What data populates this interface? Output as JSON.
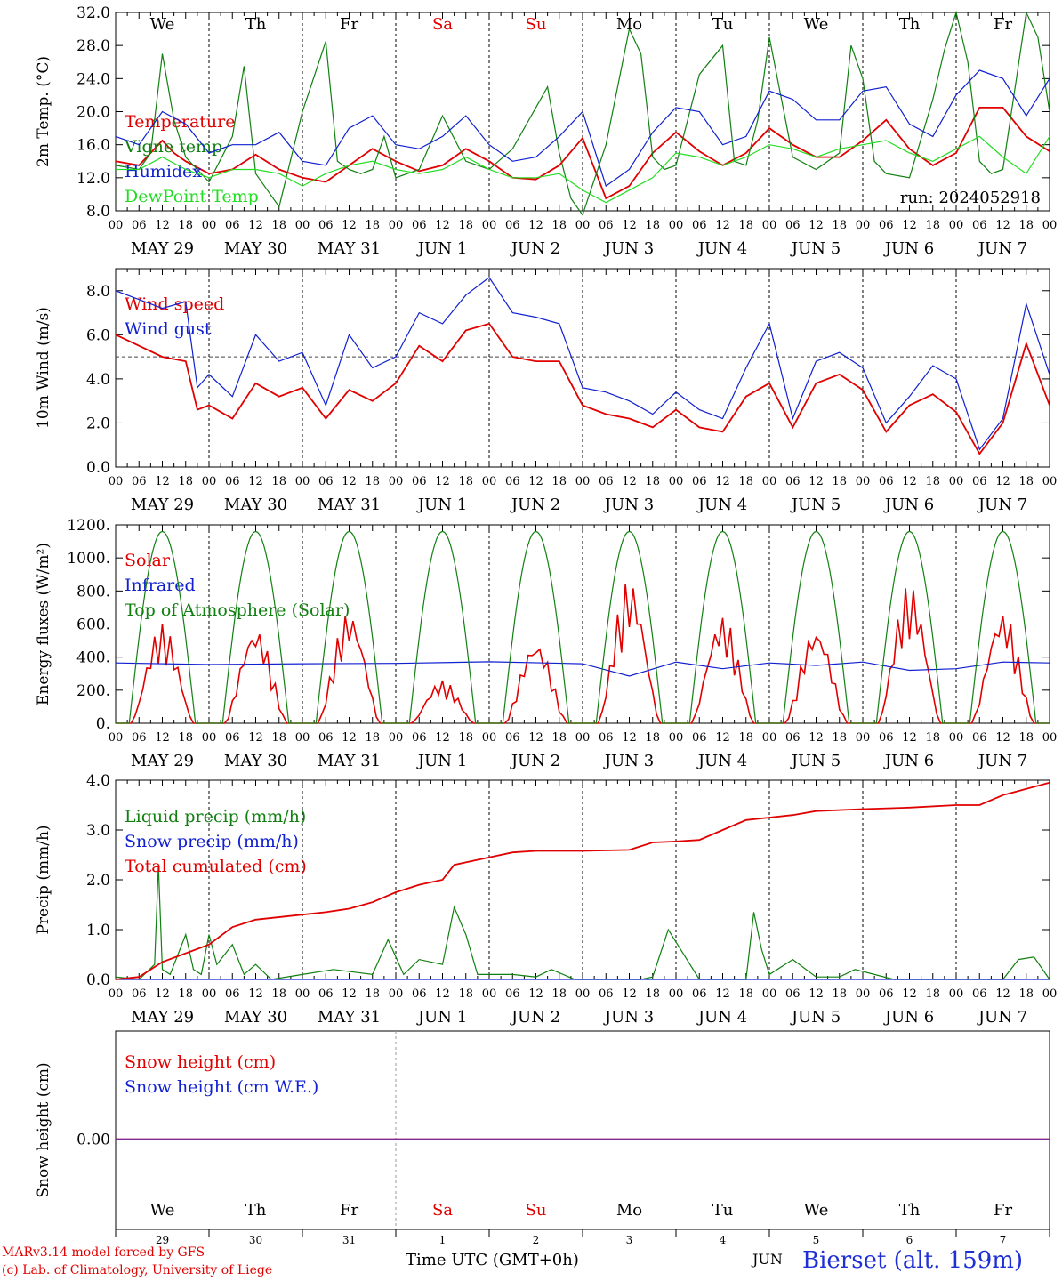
{
  "colors": {
    "red": "#e00000",
    "green": "#118011",
    "blue": "#1020d0",
    "lime": "#22dd22",
    "purple": "#7a2a9a",
    "axis": "#000000"
  },
  "days": [
    "We",
    "Th",
    "Fr",
    "Sa",
    "Su",
    "Mo",
    "Tu",
    "We",
    "Th",
    "Fr"
  ],
  "weekend_days": [
    3,
    4
  ],
  "date_labels": [
    "MAY 29",
    "MAY 30",
    "MAY 31",
    "JUN  1",
    "JUN  2",
    "JUN  3",
    "JUN  4",
    "JUN  5",
    "JUN  6",
    "JUN  7"
  ],
  "day_numbers": [
    "29",
    "30",
    "31",
    "1",
    "2",
    "3",
    "4",
    "5",
    "6",
    "7"
  ],
  "hour_labels": [
    "00",
    "06",
    "12",
    "18"
  ],
  "chart_data": [
    {
      "type": "line",
      "ylabel": "2m Temp. (°C)",
      "ylim": [
        8,
        32
      ],
      "yticks": [
        "8.0",
        "12.0",
        "16.0",
        "20.0",
        "24.0",
        "28.0",
        "32.0"
      ],
      "x_unit": "hours since MAY 29 00 UTC",
      "run": "run: 2024052918",
      "series": [
        {
          "name": "Temperature",
          "color": "red",
          "x": [
            0,
            6,
            12,
            15,
            18,
            24,
            30,
            36,
            42,
            48,
            54,
            60,
            66,
            72,
            78,
            84,
            90,
            96,
            102,
            108,
            114,
            120,
            126,
            132,
            138,
            144,
            150,
            156,
            162,
            168,
            174,
            180,
            186,
            192,
            198,
            204,
            210,
            216,
            222,
            228,
            234,
            240
          ],
          "y": [
            14,
            13.5,
            16.5,
            15,
            14,
            12.5,
            13,
            14.8,
            13,
            12,
            11.5,
            13.5,
            15.5,
            14,
            12.8,
            13.5,
            15.5,
            14,
            12,
            11.8,
            13.5,
            16.8,
            9.5,
            11,
            15,
            17.5,
            15.2,
            13.5,
            15,
            18,
            16,
            14.5,
            14.5,
            16.5,
            19,
            15.5,
            13.5,
            15,
            20.5,
            20.5,
            17,
            15.2
          ]
        },
        {
          "name": "Vigne temp",
          "color": "green",
          "x": [
            0,
            6,
            9,
            12,
            15,
            18,
            24,
            30,
            33,
            36,
            39,
            42,
            48,
            54,
            57,
            60,
            63,
            66,
            69,
            72,
            78,
            84,
            90,
            96,
            102,
            108,
            111,
            114,
            117,
            120,
            126,
            132,
            135,
            138,
            141,
            144,
            150,
            156,
            159,
            162,
            165,
            168,
            174,
            180,
            186,
            189,
            192,
            195,
            198,
            204,
            210,
            213,
            216,
            219,
            222,
            225,
            228,
            234,
            237,
            240
          ],
          "y": [
            13.5,
            13,
            15,
            27,
            19,
            14.5,
            11.5,
            17,
            25.5,
            12.5,
            10.5,
            8.5,
            20,
            28.5,
            14,
            13,
            12.5,
            13,
            17,
            12,
            13,
            19.5,
            14,
            13,
            15.5,
            20.5,
            23,
            15,
            9.5,
            7.5,
            16,
            30,
            27,
            14.5,
            13,
            13.5,
            24.5,
            28,
            14,
            13.5,
            19,
            29,
            14.5,
            13,
            15,
            28,
            24,
            14,
            12.5,
            12,
            21.5,
            27.5,
            32,
            26,
            14,
            12.5,
            13,
            32,
            29,
            20
          ]
        },
        {
          "name": "Humidex",
          "color": "blue",
          "x": [
            0,
            6,
            12,
            18,
            24,
            30,
            36,
            42,
            48,
            54,
            60,
            66,
            72,
            78,
            84,
            90,
            96,
            102,
            108,
            114,
            120,
            126,
            132,
            138,
            144,
            150,
            156,
            162,
            168,
            174,
            180,
            186,
            192,
            198,
            204,
            210,
            216,
            222,
            228,
            234,
            240
          ],
          "y": [
            17,
            16,
            20,
            18.5,
            15,
            16,
            16,
            17.5,
            14,
            13.5,
            18,
            19.5,
            16,
            15.5,
            17,
            19.5,
            16,
            14,
            14.5,
            17,
            20,
            11,
            13,
            17.5,
            20.5,
            20,
            16,
            17,
            22.5,
            21.5,
            19,
            19,
            22.5,
            23,
            18.5,
            17,
            22,
            25,
            24,
            19.5,
            24
          ]
        },
        {
          "name": "DewPoint Temp",
          "color": "lime",
          "x": [
            0,
            6,
            12,
            18,
            24,
            30,
            36,
            42,
            48,
            54,
            60,
            66,
            72,
            78,
            84,
            90,
            96,
            102,
            108,
            114,
            120,
            126,
            132,
            138,
            144,
            150,
            156,
            162,
            168,
            174,
            180,
            186,
            192,
            198,
            204,
            210,
            216,
            222,
            228,
            234,
            240
          ],
          "y": [
            13,
            13,
            14.5,
            13,
            12,
            13,
            13,
            12.5,
            11,
            12.5,
            13.5,
            14,
            13,
            12.5,
            13,
            14.5,
            13,
            12,
            12,
            12.5,
            10.5,
            9,
            10.5,
            12,
            15,
            14.5,
            13.5,
            14.5,
            16,
            15.5,
            14.5,
            15.5,
            16,
            16.5,
            15,
            14,
            15.5,
            17,
            14.5,
            12.5,
            17
          ]
        }
      ]
    },
    {
      "type": "line",
      "ylabel": "10m Wind (m/s)",
      "ylim": [
        0,
        9
      ],
      "yticks": [
        "0.0",
        "2.0",
        "4.0",
        "6.0",
        "8.0"
      ],
      "reference_line": 5,
      "series": [
        {
          "name": "Wind speed",
          "color": "red",
          "x": [
            0,
            6,
            12,
            18,
            21,
            24,
            30,
            36,
            42,
            48,
            54,
            60,
            66,
            72,
            78,
            84,
            90,
            96,
            102,
            108,
            114,
            120,
            126,
            132,
            138,
            144,
            150,
            156,
            162,
            168,
            174,
            180,
            186,
            192,
            198,
            204,
            210,
            216,
            222,
            228,
            234,
            240
          ],
          "y": [
            6,
            5.5,
            5,
            4.8,
            2.6,
            2.8,
            2.2,
            3.8,
            3.2,
            3.6,
            2.2,
            3.5,
            3,
            3.8,
            5.5,
            4.8,
            6.2,
            6.5,
            5,
            4.8,
            4.8,
            2.8,
            2.4,
            2.2,
            1.8,
            2.6,
            1.8,
            1.6,
            3.2,
            3.8,
            1.8,
            3.8,
            4.2,
            3.5,
            1.6,
            2.8,
            3.3,
            2.5,
            0.6,
            2,
            5.6,
            2.8
          ]
        },
        {
          "name": "Wind gust",
          "color": "blue",
          "x": [
            0,
            6,
            12,
            18,
            21,
            24,
            30,
            36,
            42,
            48,
            54,
            60,
            66,
            72,
            78,
            84,
            90,
            96,
            102,
            108,
            114,
            120,
            126,
            132,
            138,
            144,
            150,
            156,
            162,
            168,
            174,
            180,
            186,
            192,
            198,
            204,
            210,
            216,
            222,
            228,
            234,
            240
          ],
          "y": [
            8,
            7.6,
            7.2,
            7.5,
            3.6,
            4.2,
            3.2,
            6,
            4.8,
            5.2,
            2.8,
            6,
            4.5,
            5,
            7,
            6.5,
            7.8,
            8.6,
            7,
            6.8,
            6.5,
            3.6,
            3.4,
            3,
            2.4,
            3.4,
            2.6,
            2.2,
            4.5,
            6.5,
            2.2,
            4.8,
            5.2,
            4.5,
            2,
            3.2,
            4.6,
            4,
            0.8,
            2.2,
            7.4,
            4.2
          ]
        }
      ]
    },
    {
      "type": "line",
      "ylabel": "Energy fluxes (W/m²)",
      "ylim": [
        0,
        1200
      ],
      "yticks": [
        "0.",
        "200.",
        "400.",
        "600.",
        "800.",
        "1000.",
        "1200."
      ],
      "series": [
        {
          "name": "Solar",
          "color": "red",
          "peaks": [
            600,
            580,
            680,
            260,
            500,
            870,
            650,
            580,
            840,
            680
          ]
        },
        {
          "name": "Infrared",
          "color": "blue",
          "x": [
            0,
            24,
            48,
            72,
            96,
            120,
            132,
            144,
            156,
            168,
            180,
            192,
            204,
            216,
            228,
            240
          ],
          "y": [
            365,
            355,
            360,
            362,
            372,
            360,
            285,
            370,
            330,
            365,
            350,
            370,
            320,
            330,
            370,
            365
          ]
        },
        {
          "name": "Top of Atmosphere (Solar)",
          "color": "green",
          "peak": 1160
        }
      ]
    },
    {
      "type": "line",
      "ylabel": "Precip (mm/h)",
      "ylim": [
        0,
        4
      ],
      "yticks": [
        "0.0",
        "1.0",
        "2.0",
        "3.0",
        "4.0"
      ],
      "series": [
        {
          "name": "Liquid precip (mm/h)",
          "color": "green",
          "x": [
            0,
            6,
            10,
            11,
            12,
            14,
            18,
            20,
            22,
            24,
            26,
            30,
            33,
            36,
            40,
            48,
            56,
            66,
            70,
            74,
            78,
            84,
            87,
            90,
            93,
            96,
            102,
            108,
            112,
            118,
            130,
            135,
            138,
            142,
            150,
            162,
            164,
            166,
            168,
            174,
            180,
            186,
            190,
            200,
            210,
            220,
            228,
            232,
            236,
            240
          ],
          "y": [
            0.05,
            0,
            0.3,
            2.3,
            0.2,
            0.1,
            0.9,
            0.2,
            0.1,
            0.9,
            0.3,
            0.7,
            0.1,
            0.3,
            0,
            0.1,
            0.2,
            0.1,
            0.8,
            0.1,
            0.4,
            0.3,
            1.45,
            0.9,
            0.1,
            0.1,
            0.1,
            0.05,
            0.2,
            0,
            0,
            0,
            0.05,
            1,
            0,
            0,
            1.35,
            0.6,
            0.1,
            0.4,
            0.05,
            0.05,
            0.2,
            0,
            0,
            0,
            0,
            0.4,
            0.45,
            0
          ]
        },
        {
          "name": "Snow precip (mm/h)",
          "color": "blue",
          "x": [
            0,
            240
          ],
          "y": [
            0,
            0
          ]
        },
        {
          "name": "Total cumulated (cm)",
          "color": "red",
          "x": [
            0,
            6,
            12,
            24,
            30,
            36,
            48,
            54,
            60,
            66,
            72,
            78,
            84,
            87,
            90,
            96,
            102,
            108,
            120,
            132,
            138,
            144,
            150,
            156,
            162,
            168,
            174,
            180,
            192,
            204,
            216,
            222,
            228,
            240
          ],
          "y": [
            0,
            0.05,
            0.35,
            0.7,
            1.05,
            1.2,
            1.3,
            1.35,
            1.42,
            1.55,
            1.75,
            1.9,
            2.0,
            2.3,
            2.35,
            2.45,
            2.55,
            2.58,
            2.58,
            2.6,
            2.75,
            2.77,
            2.8,
            3.0,
            3.2,
            3.25,
            3.3,
            3.38,
            3.42,
            3.45,
            3.5,
            3.5,
            3.7,
            3.95
          ]
        }
      ]
    },
    {
      "type": "line",
      "ylabel": "Snow height (cm)",
      "yticks": [
        "0.00"
      ],
      "series": [
        {
          "name": "Snow height (cm)",
          "color": "red",
          "x": [
            0,
            240
          ],
          "y": [
            0,
            0
          ]
        },
        {
          "name": "Snow height (cm W.E.)",
          "color": "blue",
          "x": [
            0,
            240
          ],
          "y": [
            0,
            0
          ]
        }
      ]
    }
  ],
  "footer": {
    "credit1": "MARv3.14 model forced by GFS",
    "credit2": "(c) Lab. of Climatology, University of Liege",
    "xtitle": "Time UTC (GMT+0h)",
    "month": "JUN",
    "station": "Bierset (alt. 159m)"
  }
}
